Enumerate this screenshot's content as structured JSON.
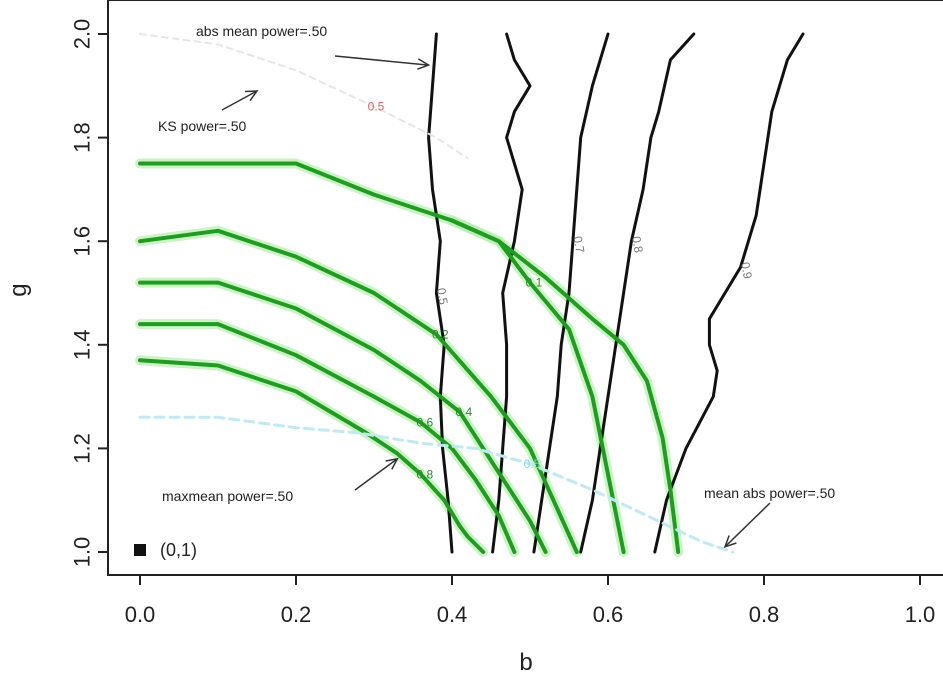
{
  "chart_data": {
    "type": "line",
    "title": "",
    "xlabel": "b",
    "ylabel": "g",
    "xlim": [
      -0.05,
      1.03
    ],
    "ylim": [
      0.96,
      2.02
    ],
    "x_ticks": [
      "0.0",
      "0.2",
      "0.4",
      "0.6",
      "0.8",
      "1.0"
    ],
    "y_ticks": [
      "1.0",
      "1.2",
      "1.4",
      "1.6",
      "1.8",
      "2.0"
    ],
    "grid": false,
    "colors": {
      "black_contours": "#111111",
      "green_contours": "#1aa01a",
      "green_halo": "#b8ecb0",
      "ks_contour": "#e6e6e6",
      "ks_label": "#e06060",
      "maxmean_contour": "#bfe9f3",
      "contour_label_gray": "#777777"
    },
    "series": [
      {
        "group": "black",
        "label": "0.5",
        "x": [
          0.4,
          0.395,
          0.388,
          0.385,
          0.39,
          0.38,
          0.385,
          0.375,
          0.37,
          0.38
        ],
        "y": [
          1.0,
          1.1,
          1.2,
          1.3,
          1.4,
          1.5,
          1.6,
          1.7,
          1.8,
          2.0
        ]
      },
      {
        "group": "black",
        "label": "",
        "x": [
          0.452,
          0.46,
          0.465,
          0.47,
          0.47,
          0.465,
          0.48,
          0.49,
          0.47,
          0.48,
          0.5,
          0.48,
          0.47
        ],
        "y": [
          1.0,
          1.1,
          1.2,
          1.3,
          1.4,
          1.5,
          1.6,
          1.7,
          1.8,
          1.85,
          1.9,
          1.95,
          2.0
        ]
      },
      {
        "group": "black",
        "label": "0.7",
        "x": [
          0.505,
          0.515,
          0.525,
          0.535,
          0.54,
          0.55,
          0.555,
          0.56,
          0.565,
          0.58,
          0.6
        ],
        "y": [
          1.0,
          1.1,
          1.2,
          1.3,
          1.4,
          1.5,
          1.6,
          1.7,
          1.8,
          1.9,
          2.0
        ]
      },
      {
        "group": "black",
        "label": "0.8",
        "x": [
          0.565,
          0.58,
          0.59,
          0.6,
          0.61,
          0.62,
          0.63,
          0.645,
          0.655,
          0.665,
          0.68,
          0.71
        ],
        "y": [
          1.0,
          1.1,
          1.2,
          1.3,
          1.4,
          1.5,
          1.6,
          1.7,
          1.8,
          1.85,
          1.95,
          2.0
        ]
      },
      {
        "group": "black",
        "label": "0.9",
        "x": [
          0.66,
          0.675,
          0.7,
          0.735,
          0.74,
          0.73,
          0.73,
          0.77,
          0.79,
          0.8,
          0.81,
          0.83,
          0.85
        ],
        "y": [
          1.0,
          1.1,
          1.2,
          1.3,
          1.35,
          1.4,
          1.45,
          1.55,
          1.65,
          1.75,
          1.85,
          1.95,
          2.0
        ]
      },
      {
        "group": "green",
        "label": "0.8",
        "x": [
          0.0,
          0.1,
          0.2,
          0.29,
          0.33,
          0.36,
          0.39,
          0.41,
          0.42,
          0.44
        ],
        "y": [
          1.37,
          1.36,
          1.31,
          1.23,
          1.19,
          1.15,
          1.1,
          1.05,
          1.03,
          1.0
        ]
      },
      {
        "group": "green",
        "label": "0.6",
        "x": [
          0.0,
          0.1,
          0.2,
          0.3,
          0.36,
          0.4,
          0.43,
          0.46,
          0.48
        ],
        "y": [
          1.44,
          1.44,
          1.38,
          1.3,
          1.25,
          1.2,
          1.14,
          1.07,
          1.0
        ]
      },
      {
        "group": "green",
        "label": "0.4",
        "x": [
          0.0,
          0.1,
          0.2,
          0.3,
          0.36,
          0.41,
          0.44,
          0.47,
          0.5,
          0.52
        ],
        "y": [
          1.52,
          1.52,
          1.47,
          1.39,
          1.33,
          1.27,
          1.2,
          1.13,
          1.06,
          1.0
        ]
      },
      {
        "group": "green",
        "label": "0.2",
        "x": [
          0.0,
          0.1,
          0.2,
          0.3,
          0.38,
          0.45,
          0.5,
          0.53,
          0.56
        ],
        "y": [
          1.6,
          1.62,
          1.57,
          1.5,
          1.42,
          1.3,
          1.2,
          1.1,
          1.0
        ]
      },
      {
        "group": "green",
        "label": "0.1",
        "x": [
          0.0,
          0.1,
          0.2,
          0.3,
          0.4,
          0.46,
          0.5,
          0.55,
          0.58,
          0.6,
          0.62
        ],
        "y": [
          1.75,
          1.75,
          1.75,
          1.69,
          1.64,
          1.6,
          1.52,
          1.43,
          1.3,
          1.15,
          1.0
        ]
      },
      {
        "group": "green",
        "label": "",
        "x": [
          0.4,
          0.46,
          0.52,
          0.58,
          0.62,
          0.65,
          0.67,
          0.68,
          0.69
        ],
        "y": [
          1.64,
          1.6,
          1.53,
          1.45,
          1.4,
          1.33,
          1.22,
          1.12,
          1.0
        ]
      },
      {
        "group": "ks",
        "label": "0.5",
        "x": [
          0.0,
          0.1,
          0.2,
          0.3,
          0.38,
          0.42
        ],
        "y": [
          2.0,
          1.98,
          1.93,
          1.86,
          1.8,
          1.76
        ]
      },
      {
        "group": "maxmean",
        "label": "0.5",
        "x": [
          0.0,
          0.1,
          0.2,
          0.28,
          0.36,
          0.43,
          0.5,
          0.58,
          0.65,
          0.72,
          0.76
        ],
        "y": [
          1.26,
          1.26,
          1.24,
          1.23,
          1.21,
          1.2,
          1.17,
          1.12,
          1.07,
          1.02,
          1.0
        ]
      }
    ],
    "annotations": [
      {
        "text": "abs mean power=.50",
        "arrow_to": [
          0.37,
          1.94
        ]
      },
      {
        "text": "KS power=.50",
        "arrow_to": [
          0.15,
          1.89
        ]
      },
      {
        "text": "maxmean power=.50",
        "arrow_to": [
          0.33,
          1.18
        ]
      },
      {
        "text": "mean abs power=.50",
        "arrow_to": [
          0.75,
          1.01
        ]
      }
    ],
    "legend": {
      "text": "(0,1)",
      "placement": "bottom-left"
    }
  }
}
